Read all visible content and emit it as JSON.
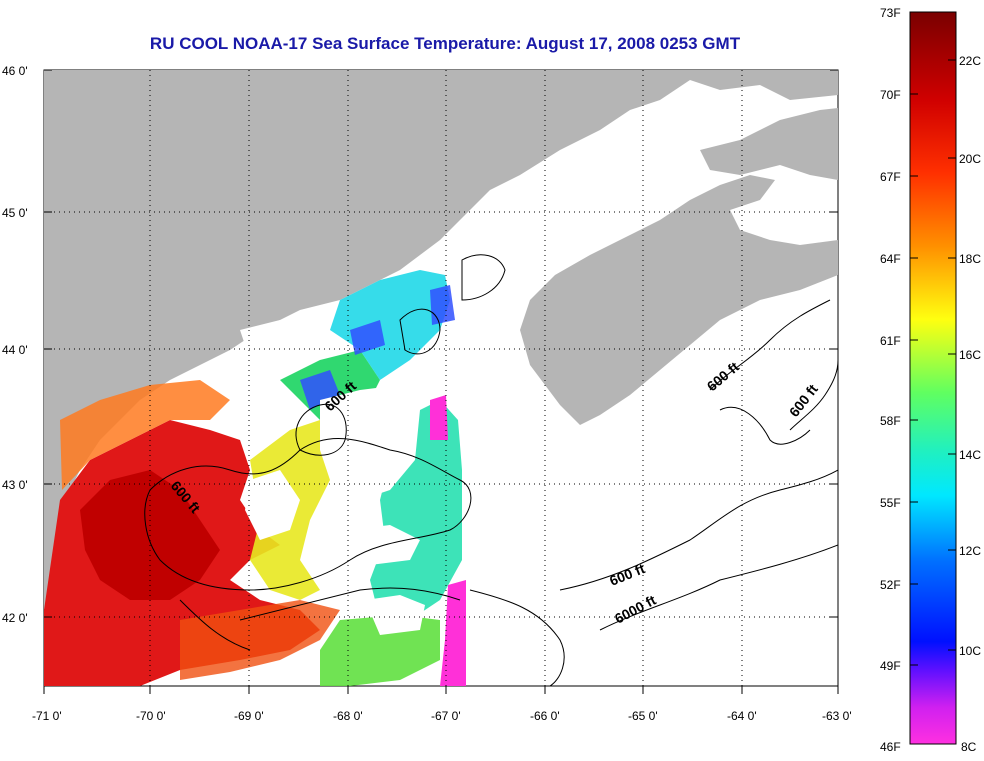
{
  "title": "RU COOL  NOAA-17  Sea Surface Temperature:  August 17, 2008 0253 GMT",
  "map": {
    "lat_labels": [
      "46 0'",
      "45 0'",
      "44 0'",
      "43 0'",
      "42 0'"
    ],
    "lon_labels": [
      "-71 0'",
      "-70 0'",
      "-69 0'",
      "-68 0'",
      "-67 0'",
      "-66 0'",
      "-65 0'",
      "-64 0'",
      "-63 0'"
    ],
    "contour_labels": [
      "600 ft",
      "600 ft",
      "600 ft",
      "600 ft",
      "600 ft",
      "6000 ft"
    ],
    "colors": {
      "land": "#b5b5b5",
      "water_no_data": "#ffffff",
      "warm": "#e01010",
      "hot": "#c00000",
      "orange": "#ff7a00",
      "yellow": "#f0f020",
      "green": "#30e060",
      "cyan": "#20e0f0",
      "blue": "#2050ff",
      "magenta": "#ff20e0"
    }
  },
  "colorbar": {
    "f_labels": [
      "73F",
      "70F",
      "67F",
      "64F",
      "61F",
      "58F",
      "55F",
      "52F",
      "49F",
      "46F"
    ],
    "c_labels": [
      "22C",
      "20C",
      "18C",
      "16C",
      "14C",
      "12C",
      "10C",
      "8C"
    ],
    "stops": [
      "#8a0000",
      "#d40000",
      "#ff4000",
      "#ff9000",
      "#ffe000",
      "#e8ff20",
      "#80ff40",
      "#20e8a0",
      "#00e0ff",
      "#0080ff",
      "#0020ff",
      "#0000d0",
      "#8000ff",
      "#ff20e0"
    ]
  }
}
